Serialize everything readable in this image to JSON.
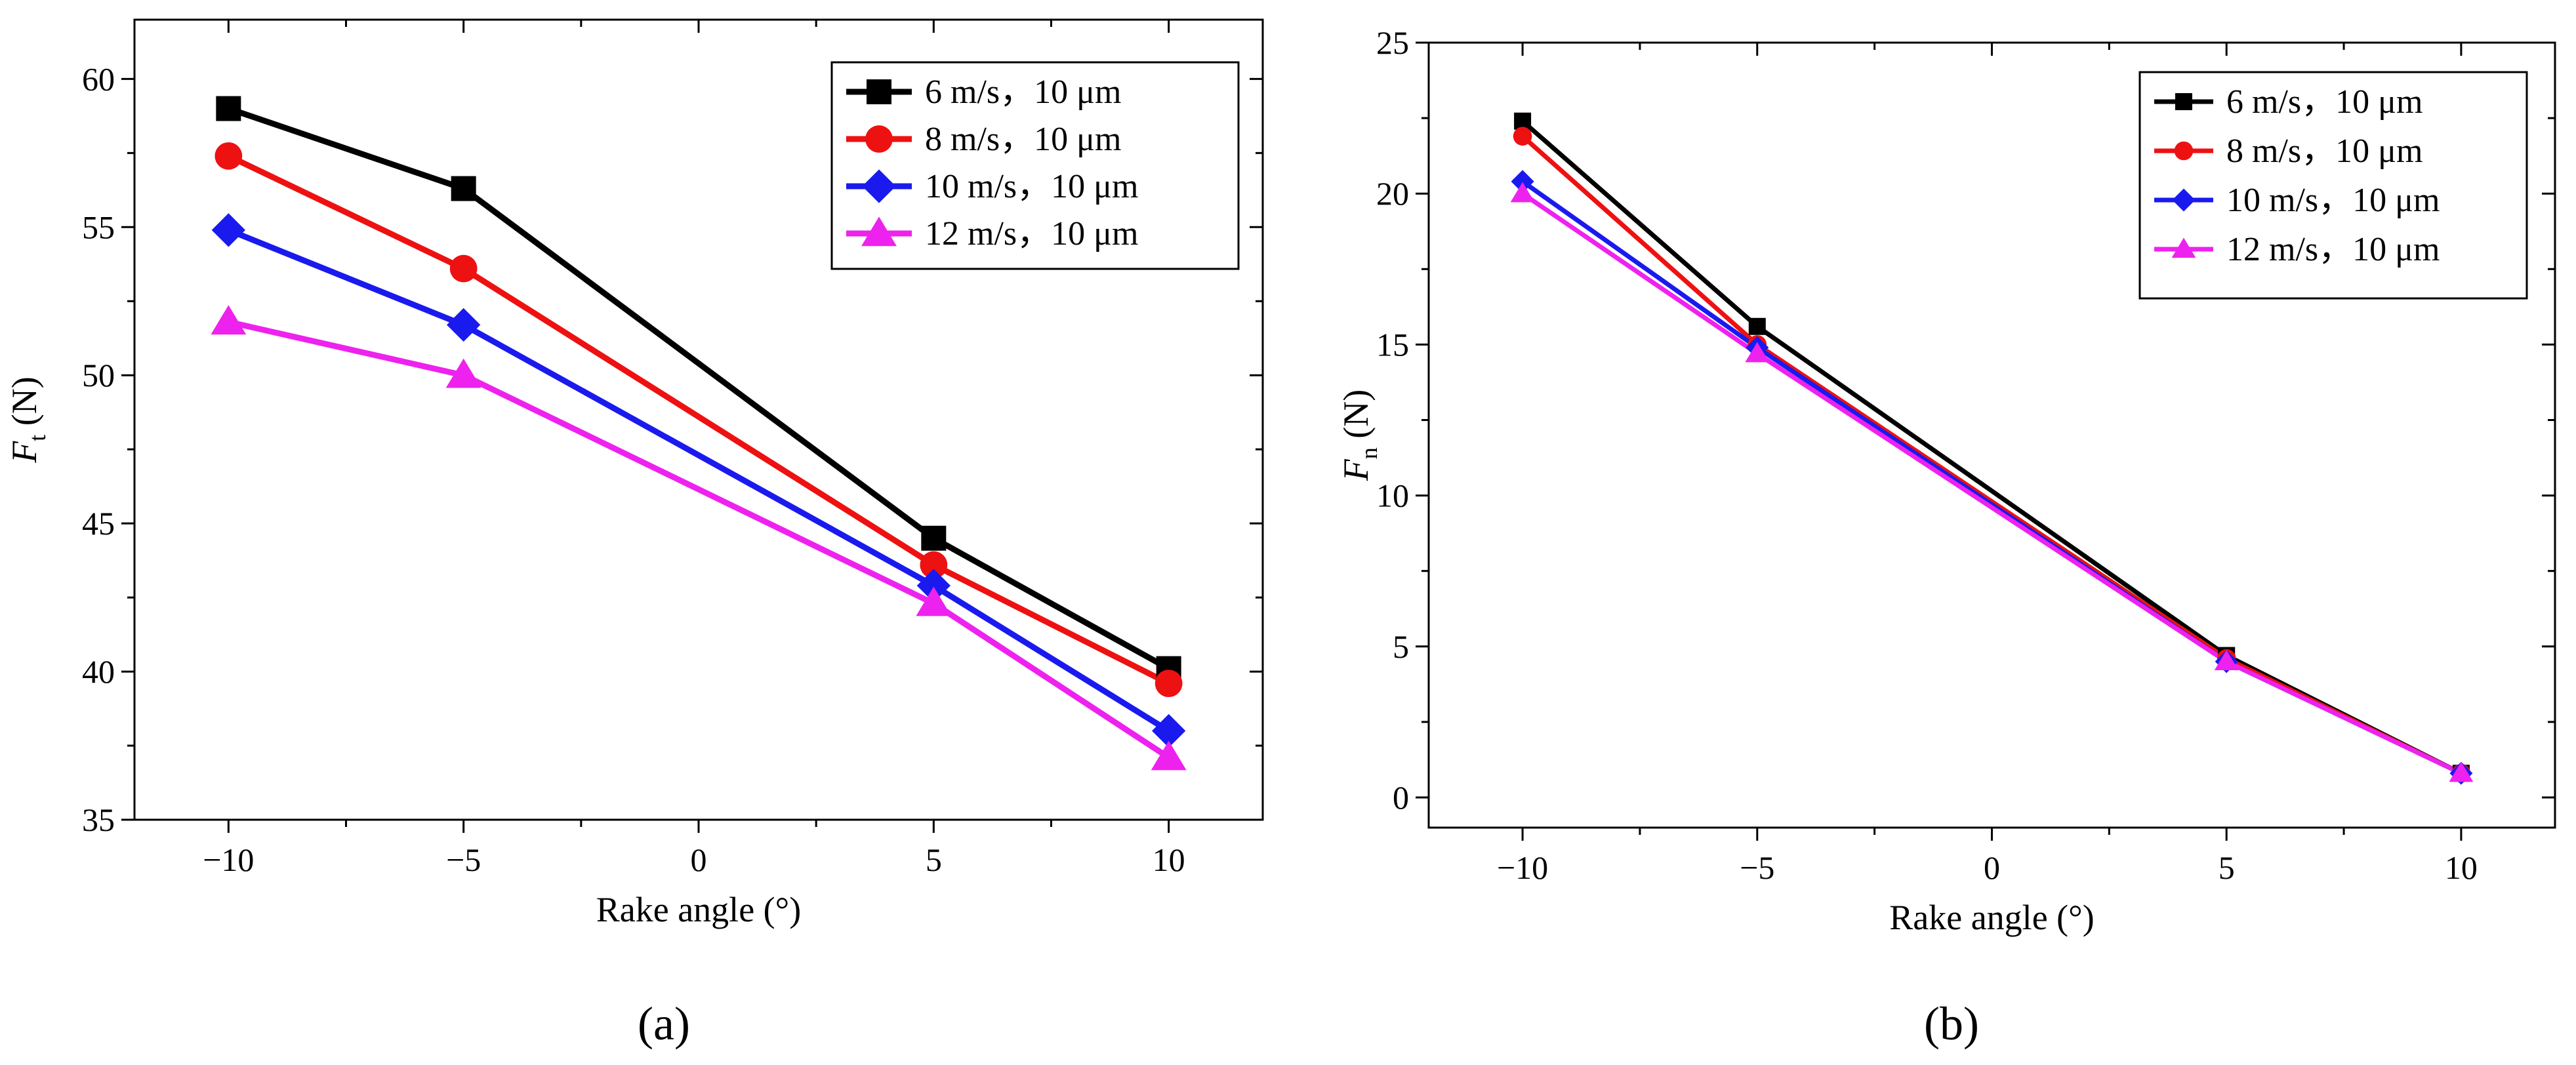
{
  "figure": {
    "panel_labels": [
      "(a)",
      "(b)"
    ]
  },
  "chart_data": [
    {
      "type": "line",
      "panel": "(a)",
      "title": "",
      "xlabel": "Rake angle (°)",
      "ylabel_main": "F",
      "ylabel_sub": "t",
      "ylabel_unit": " (N)",
      "x": [
        -10,
        -5,
        5,
        10
      ],
      "xlim": [
        -12,
        12
      ],
      "ylim": [
        35,
        62
      ],
      "xticks": [
        -10,
        -5,
        0,
        5,
        10
      ],
      "xtick_labels": [
        "−10",
        "−5",
        "0",
        "5",
        "10"
      ],
      "yticks": [
        35,
        40,
        45,
        50,
        55,
        60
      ],
      "legend_position": "top-right",
      "series": [
        {
          "name": "6 m/s，10 μm",
          "values": [
            59.0,
            56.3,
            44.5,
            40.1
          ],
          "color": "#000000",
          "marker": "square"
        },
        {
          "name": "8 m/s，10 μm",
          "values": [
            57.4,
            53.6,
            43.6,
            39.6
          ],
          "color": "#ee1111",
          "marker": "circle"
        },
        {
          "name": "10 m/s，10 μm",
          "values": [
            54.9,
            51.7,
            42.9,
            38.0
          ],
          "color": "#1a1aee",
          "marker": "diamond"
        },
        {
          "name": "12 m/s，10 μm",
          "values": [
            51.8,
            50.0,
            42.3,
            37.1
          ],
          "color": "#ee22ee",
          "marker": "triangle"
        }
      ]
    },
    {
      "type": "line",
      "panel": "(b)",
      "title": "",
      "xlabel": "Rake angle (°)",
      "ylabel_main": "F",
      "ylabel_sub": "n",
      "ylabel_unit": " (N)",
      "x": [
        -10,
        -5,
        5,
        10
      ],
      "xlim": [
        -12,
        12
      ],
      "ylim": [
        -1,
        25
      ],
      "xticks": [
        -10,
        -5,
        0,
        5,
        10
      ],
      "xtick_labels": [
        "−10",
        "−5",
        "0",
        "5",
        "10"
      ],
      "yticks": [
        0,
        5,
        10,
        15,
        20,
        25
      ],
      "legend_position": "top-right",
      "series": [
        {
          "name": "6 m/s，10 μm",
          "values": [
            22.4,
            15.6,
            4.7,
            0.8
          ],
          "color": "#000000",
          "marker": "square"
        },
        {
          "name": "8 m/s，10 μm",
          "values": [
            21.9,
            15.0,
            4.6,
            0.8
          ],
          "color": "#ee1111",
          "marker": "circle"
        },
        {
          "name": "10 m/s，10 μm",
          "values": [
            20.4,
            14.9,
            4.5,
            0.8
          ],
          "color": "#1a1aee",
          "marker": "diamond"
        },
        {
          "name": "12 m/s，10 μm",
          "values": [
            20.0,
            14.7,
            4.5,
            0.8
          ],
          "color": "#ee22ee",
          "marker": "triangle"
        }
      ]
    }
  ]
}
